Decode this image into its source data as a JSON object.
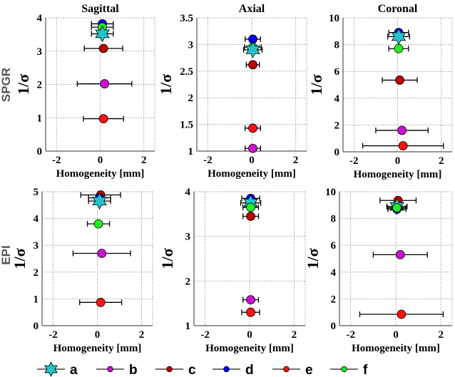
{
  "chart_data": {
    "type": "scatter",
    "row_labels": [
      "SPGR",
      "EPI"
    ],
    "legend": [
      {
        "key": "a",
        "color": "#22c4cc",
        "marker": "hexagram"
      },
      {
        "key": "b",
        "color": "#cc11cc",
        "marker": "circle"
      },
      {
        "key": "c",
        "color": "#bb0000",
        "marker": "circle"
      },
      {
        "key": "d",
        "color": "#0000ee",
        "marker": "circle"
      },
      {
        "key": "e",
        "color": "#ff1111",
        "marker": "circle"
      },
      {
        "key": "f",
        "color": "#22ee22",
        "marker": "circle"
      }
    ],
    "panels": [
      {
        "row": "SPGR",
        "title": "Sagittal",
        "xlabel": "Homogeneity [mm]",
        "ylabel": "1/σ",
        "xlim": [
          -2.5,
          2.5
        ],
        "ylim": [
          0,
          4
        ],
        "xticks": [
          -2,
          0,
          2
        ],
        "yticks": [
          0,
          1,
          2,
          3,
          4
        ],
        "ytick_labels": [
          "0",
          "1",
          "2",
          "3",
          "4"
        ],
        "points": [
          {
            "s": "d",
            "x": 0.1,
            "y": 3.82,
            "err": 0.5
          },
          {
            "s": "f",
            "x": 0.1,
            "y": 3.72,
            "err": 0.5
          },
          {
            "s": "a",
            "x": 0.1,
            "y": 3.52,
            "err": 0.5
          },
          {
            "s": "c",
            "x": 0.15,
            "y": 3.08,
            "err": 0.88
          },
          {
            "s": "b",
            "x": 0.2,
            "y": 2.02,
            "err": 1.25
          },
          {
            "s": "e",
            "x": 0.15,
            "y": 0.97,
            "err": 0.92
          }
        ]
      },
      {
        "row": "SPGR",
        "title": "Axial",
        "xlabel": "Homogeneity [mm]",
        "ylabel": "1/σ",
        "xlim": [
          -2.5,
          2.5
        ],
        "ylim": [
          1,
          3.5
        ],
        "xticks": [
          -2,
          0,
          2
        ],
        "yticks": [
          1,
          1.5,
          2,
          2.5,
          3,
          3.5
        ],
        "ytick_labels": [
          "1",
          "1.5",
          "2",
          "2.5",
          "3",
          "3.5"
        ],
        "points": [
          {
            "s": "d",
            "x": 0.05,
            "y": 3.1,
            "err": 0.35
          },
          {
            "s": "f",
            "x": 0.05,
            "y": 2.95,
            "err": 0.38
          },
          {
            "s": "a",
            "x": 0.05,
            "y": 2.9,
            "err": 0.42
          },
          {
            "s": "c",
            "x": 0.05,
            "y": 2.62,
            "err": 0.3
          },
          {
            "s": "e",
            "x": 0.05,
            "y": 1.43,
            "err": 0.35
          },
          {
            "s": "b",
            "x": 0.05,
            "y": 1.05,
            "err": 0.35
          }
        ]
      },
      {
        "row": "SPGR",
        "title": "Coronal",
        "xlabel": "Homogeneity [mm]",
        "ylabel": "1/σ",
        "xlim": [
          -2.5,
          2.5
        ],
        "ylim": [
          0,
          10
        ],
        "xticks": [
          -2,
          0,
          2
        ],
        "yticks": [
          0,
          2,
          4,
          6,
          8,
          10
        ],
        "ytick_labels": [
          "0",
          "2",
          "4",
          "6",
          "8",
          "10"
        ],
        "points": [
          {
            "s": "d",
            "x": 0.05,
            "y": 8.9,
            "err": 0.45
          },
          {
            "s": "a",
            "x": 0.05,
            "y": 8.6,
            "err": 0.5
          },
          {
            "s": "f",
            "x": 0.05,
            "y": 7.7,
            "err": 0.45
          },
          {
            "s": "c",
            "x": 0.1,
            "y": 5.35,
            "err": 0.8
          },
          {
            "s": "b",
            "x": 0.2,
            "y": 1.6,
            "err": 1.2
          },
          {
            "s": "e",
            "x": 0.25,
            "y": 0.45,
            "err": 1.85
          }
        ]
      },
      {
        "row": "EPI",
        "title": "",
        "xlabel": "Homogeneity [mm]",
        "ylabel": "1/σ",
        "xlim": [
          -2.5,
          2.5
        ],
        "ylim": [
          0,
          5
        ],
        "xticks": [
          -2,
          0,
          2
        ],
        "yticks": [
          0,
          1,
          2,
          3,
          4,
          5
        ],
        "ytick_labels": [
          "0",
          "1",
          "2",
          "3",
          "4",
          "5"
        ],
        "points": [
          {
            "s": "c",
            "x": 0.15,
            "y": 4.88,
            "err": 0.9
          },
          {
            "s": "d",
            "x": 0.1,
            "y": 4.77,
            "err": 0.5
          },
          {
            "s": "a",
            "x": 0.1,
            "y": 4.65,
            "err": 0.5
          },
          {
            "s": "f",
            "x": 0.05,
            "y": 3.8,
            "err": 0.5
          },
          {
            "s": "b",
            "x": 0.2,
            "y": 2.7,
            "err": 1.3
          },
          {
            "s": "e",
            "x": 0.15,
            "y": 0.87,
            "err": 0.95
          }
        ]
      },
      {
        "row": "EPI",
        "title": "",
        "xlabel": "Homogeneity [mm]",
        "ylabel": "1/σ",
        "xlim": [
          -2.5,
          2.5
        ],
        "ylim": [
          1,
          4
        ],
        "xticks": [
          -2,
          0,
          2
        ],
        "yticks": [
          1,
          2,
          3,
          4
        ],
        "ytick_labels": [
          "1",
          "2",
          "3",
          "4"
        ],
        "points": [
          {
            "s": "d",
            "x": 0.05,
            "y": 3.85,
            "err": 0.4
          },
          {
            "s": "a",
            "x": 0.05,
            "y": 3.75,
            "err": 0.45
          },
          {
            "s": "f",
            "x": 0.05,
            "y": 3.65,
            "err": 0.35
          },
          {
            "s": "c",
            "x": 0.05,
            "y": 3.45,
            "err": 0.35
          },
          {
            "s": "b",
            "x": 0.05,
            "y": 1.58,
            "err": 0.35
          },
          {
            "s": "e",
            "x": 0.05,
            "y": 1.3,
            "err": 0.4
          }
        ]
      },
      {
        "row": "EPI",
        "title": "",
        "xlabel": "Homogeneity [mm]",
        "ylabel": "1/σ",
        "xlim": [
          -2.5,
          2.5
        ],
        "ylim": [
          0,
          10
        ],
        "xticks": [
          -2,
          0,
          2
        ],
        "yticks": [
          0,
          2,
          4,
          6,
          8,
          10
        ],
        "ytick_labels": [
          "0",
          "2",
          "4",
          "6",
          "8",
          "10"
        ],
        "points": [
          {
            "s": "c",
            "x": 0.1,
            "y": 9.35,
            "err": 0.8
          },
          {
            "s": "a",
            "x": 0.05,
            "y": 8.9,
            "err": 0.45
          },
          {
            "s": "d",
            "x": 0.05,
            "y": 8.7,
            "err": 0.4
          },
          {
            "s": "f",
            "x": 0.05,
            "y": 8.8,
            "err": 0.4
          },
          {
            "s": "b",
            "x": 0.2,
            "y": 5.3,
            "err": 1.2
          },
          {
            "s": "e",
            "x": 0.25,
            "y": 0.85,
            "err": 1.85
          }
        ]
      }
    ]
  }
}
